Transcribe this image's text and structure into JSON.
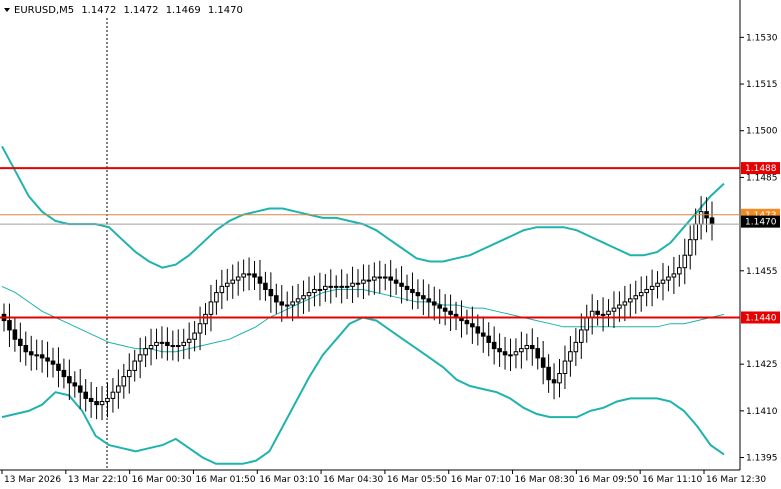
{
  "window": {
    "symbol_label": "EURUSD,M5",
    "ohlc": [
      "1.1472",
      "1.1472",
      "1.1469",
      "1.1470"
    ]
  },
  "colors": {
    "background": "#ffffff",
    "candle": "#000000",
    "bands": "#1fb3ad",
    "level_line": "#e60000",
    "last_price_line": "#d4884a",
    "bid_line": "#a0a0a0",
    "level_badge": "#e60000",
    "last_badge": "#f08a24",
    "bid_badge": "#000000"
  },
  "chart_data": {
    "type": "candlestick",
    "y_axis": {
      "range": [
        1.1391,
        1.1542
      ],
      "ticks": [
        "1.1530",
        "1.1515",
        "1.1500",
        "1.1485",
        "1.1455",
        "1.1425",
        "1.1410",
        "1.1395"
      ]
    },
    "x_axis": {
      "ticks": [
        "13 Mar 2026",
        "13 Mar 22:10",
        "16 Mar 00:30",
        "16 Mar 01:50",
        "16 Mar 03:10",
        "16 Mar 04:30",
        "16 Mar 05:50",
        "16 Mar 07:10",
        "16 Mar 08:30",
        "16 Mar 09:50",
        "16 Mar 11:10",
        "16 Mar 12:30"
      ]
    },
    "levels": [
      {
        "price": 1.1488,
        "label": "1.1488"
      },
      {
        "price": 1.144,
        "label": "1.1440"
      }
    ],
    "last_price": {
      "price": 1.1473,
      "label": "1.1473"
    },
    "bid": {
      "price": 1.147,
      "label": "1.1470"
    },
    "closes": [
      1.1439,
      1.1436,
      1.1433,
      1.1431,
      1.1429,
      1.1428,
      1.1428,
      1.1427,
      1.1426,
      1.1425,
      1.1423,
      1.1421,
      1.1419,
      1.1418,
      1.1416,
      1.1414,
      1.1413,
      1.1412,
      1.1413,
      1.1414,
      1.1416,
      1.1418,
      1.1421,
      1.1423,
      1.1426,
      1.1428,
      1.143,
      1.1431,
      1.1432,
      1.1432,
      1.1431,
      1.1431,
      1.1431,
      1.1432,
      1.1433,
      1.1435,
      1.1438,
      1.1441,
      1.1445,
      1.1448,
      1.145,
      1.1451,
      1.1452,
      1.1453,
      1.1454,
      1.1454,
      1.1453,
      1.1451,
      1.1449,
      1.1447,
      1.1445,
      1.1444,
      1.1444,
      1.1445,
      1.1446,
      1.1447,
      1.1448,
      1.1449,
      1.1449,
      1.145,
      1.145,
      1.145,
      1.145,
      1.145,
      1.1451,
      1.1451,
      1.1452,
      1.1452,
      1.1453,
      1.1453,
      1.1453,
      1.1452,
      1.1451,
      1.145,
      1.1449,
      1.1448,
      1.1447,
      1.1446,
      1.1445,
      1.1444,
      1.1443,
      1.1442,
      1.1441,
      1.144,
      1.1439,
      1.1438,
      1.1437,
      1.1435,
      1.1434,
      1.1432,
      1.143,
      1.1429,
      1.1428,
      1.1428,
      1.1429,
      1.143,
      1.1431,
      1.143,
      1.1427,
      1.1424,
      1.142,
      1.1419,
      1.1422,
      1.1426,
      1.1429,
      1.1432,
      1.1436,
      1.144,
      1.1442,
      1.1441,
      1.1441,
      1.1442,
      1.1443,
      1.1444,
      1.1445,
      1.1446,
      1.1447,
      1.1448,
      1.1449,
      1.145,
      1.1451,
      1.1452,
      1.1453,
      1.1454,
      1.1456,
      1.146,
      1.1465,
      1.147,
      1.1474,
      1.1472,
      1.147
    ],
    "bands": {
      "upper": [
        1.1495,
        1.1487,
        1.1479,
        1.1474,
        1.1471,
        1.147,
        1.147,
        1.147,
        1.1469,
        1.1465,
        1.1461,
        1.1458,
        1.1456,
        1.1457,
        1.146,
        1.1464,
        1.1468,
        1.1471,
        1.1473,
        1.1474,
        1.1475,
        1.1475,
        1.1474,
        1.1473,
        1.1472,
        1.1472,
        1.1471,
        1.147,
        1.1468,
        1.1465,
        1.1462,
        1.1459,
        1.1458,
        1.1458,
        1.1459,
        1.146,
        1.1462,
        1.1464,
        1.1466,
        1.1468,
        1.1469,
        1.1469,
        1.1469,
        1.1468,
        1.1466,
        1.1464,
        1.1462,
        1.146,
        1.146,
        1.1461,
        1.1464,
        1.1469,
        1.1474,
        1.1479,
        1.1483
      ],
      "middle": [
        1.145,
        1.1448,
        1.1445,
        1.1442,
        1.144,
        1.1438,
        1.1436,
        1.1434,
        1.1432,
        1.1431,
        1.143,
        1.143,
        1.1429,
        1.1429,
        1.143,
        1.1431,
        1.1432,
        1.1433,
        1.1435,
        1.1437,
        1.144,
        1.1442,
        1.1444,
        1.1446,
        1.1448,
        1.1449,
        1.1449,
        1.1449,
        1.1448,
        1.1447,
        1.1446,
        1.1445,
        1.1445,
        1.1444,
        1.1444,
        1.1443,
        1.1443,
        1.1442,
        1.1441,
        1.144,
        1.1439,
        1.1438,
        1.1437,
        1.1437,
        1.1437,
        1.1437,
        1.1437,
        1.1437,
        1.1437,
        1.1437,
        1.1438,
        1.1438,
        1.1439,
        1.144,
        1.1441
      ],
      "lower": [
        1.1408,
        1.1409,
        1.141,
        1.1412,
        1.1416,
        1.1415,
        1.141,
        1.1402,
        1.1399,
        1.1398,
        1.1397,
        1.1398,
        1.1399,
        1.1401,
        1.1398,
        1.1395,
        1.1393,
        1.1393,
        1.1393,
        1.1394,
        1.1397,
        1.1405,
        1.1413,
        1.1421,
        1.1428,
        1.1433,
        1.1438,
        1.144,
        1.1439,
        1.1436,
        1.1433,
        1.143,
        1.1427,
        1.1424,
        1.142,
        1.1418,
        1.1417,
        1.1416,
        1.1414,
        1.1411,
        1.1409,
        1.1408,
        1.1408,
        1.1408,
        1.141,
        1.1411,
        1.1413,
        1.1414,
        1.1414,
        1.1414,
        1.1413,
        1.141,
        1.1405,
        1.1399,
        1.1396
      ]
    }
  }
}
